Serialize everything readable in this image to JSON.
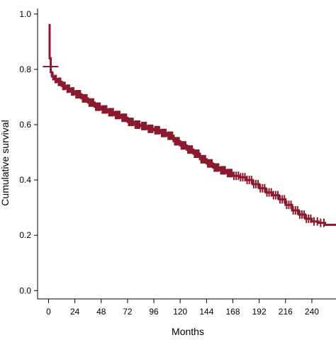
{
  "chart_data": {
    "type": "line",
    "title": "",
    "xlabel": "Months",
    "ylabel": "Cumulative survival",
    "xlim": [
      -10,
      262
    ],
    "ylim": [
      -0.03,
      1.02
    ],
    "x_ticks": [
      0,
      24,
      48,
      72,
      96,
      120,
      144,
      168,
      192,
      216,
      240
    ],
    "x_tick_labels": [
      "0",
      "24",
      "48",
      "72",
      "96",
      "120",
      "144",
      "168",
      "192",
      "216",
      "240"
    ],
    "y_ticks": [
      0.0,
      0.2,
      0.4,
      0.6,
      0.8,
      1.0
    ],
    "y_tick_labels": [
      "0.0",
      "0.2",
      "0.4",
      "0.6",
      "0.8",
      "1.0"
    ],
    "grid": false,
    "series": [
      {
        "color": "#8B1A2F",
        "x": [
          0,
          1,
          2,
          3,
          5,
          8,
          12,
          16,
          20,
          24,
          30,
          36,
          42,
          48,
          54,
          60,
          66,
          72,
          78,
          84,
          90,
          96,
          102,
          108,
          114,
          120,
          126,
          132,
          138,
          144,
          150,
          156,
          162,
          168,
          174,
          180,
          186,
          192,
          198,
          204,
          210,
          216,
          222,
          228,
          234,
          240,
          246,
          252,
          262
        ],
        "y": [
          0.96,
          0.84,
          0.79,
          0.775,
          0.765,
          0.755,
          0.74,
          0.73,
          0.72,
          0.71,
          0.695,
          0.68,
          0.665,
          0.655,
          0.645,
          0.635,
          0.625,
          0.61,
          0.6,
          0.595,
          0.585,
          0.58,
          0.57,
          0.56,
          0.54,
          0.525,
          0.51,
          0.495,
          0.475,
          0.46,
          0.445,
          0.435,
          0.425,
          0.415,
          0.41,
          0.4,
          0.385,
          0.37,
          0.355,
          0.345,
          0.33,
          0.31,
          0.29,
          0.275,
          0.26,
          0.25,
          0.245,
          0.238,
          0.235
        ]
      }
    ],
    "censor_marks": {
      "x": [
        4,
        6,
        7,
        9,
        10,
        11,
        13,
        14,
        15,
        17,
        18,
        19,
        21,
        22,
        23,
        25,
        26,
        27,
        28,
        29,
        31,
        32,
        33,
        34,
        35,
        37,
        38,
        39,
        40,
        41,
        43,
        44,
        45,
        46,
        47,
        49,
        50,
        51,
        52,
        53,
        55,
        56,
        57,
        58,
        59,
        61,
        62,
        63,
        64,
        65,
        67,
        68,
        69,
        70,
        71,
        73,
        74,
        75,
        76,
        77,
        79,
        80,
        81,
        82,
        83,
        85,
        86,
        87,
        88,
        89,
        91,
        92,
        93,
        94,
        95,
        97,
        98,
        99,
        100,
        101,
        103,
        104,
        105,
        106,
        107,
        109,
        110,
        111,
        112,
        113,
        115,
        116,
        117,
        118,
        119,
        121,
        122,
        123,
        124,
        125,
        127,
        128,
        129,
        130,
        131,
        133,
        134,
        135,
        136,
        137,
        139,
        140,
        141,
        142,
        143,
        145,
        146,
        147,
        148,
        149,
        151,
        152,
        153,
        154,
        155,
        157,
        158,
        159,
        160,
        161,
        163,
        164,
        165,
        166,
        167,
        169,
        171,
        173,
        175,
        177,
        179,
        181,
        183,
        185,
        187,
        189,
        191,
        193,
        195,
        197,
        199,
        201,
        203,
        205,
        207,
        209,
        211,
        213,
        215,
        217,
        219,
        221,
        223,
        225,
        227,
        229,
        231,
        233,
        235,
        237,
        239,
        242,
        245,
        248,
        251
      ]
    }
  }
}
